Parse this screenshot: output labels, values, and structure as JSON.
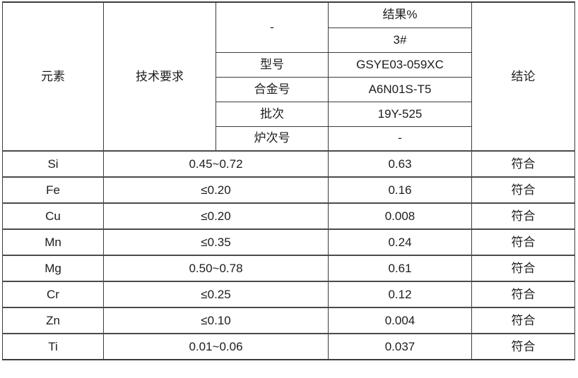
{
  "colors": {
    "background": "#ffffff",
    "border": "#3c3c3c",
    "text": "#1c1c1c"
  },
  "table": {
    "header": {
      "element_label": "元素",
      "requirement_label": "技术要求",
      "spec_dash": "-",
      "result_percent_label": "结果%",
      "sample_id": "3#",
      "meta": [
        {
          "label": "型号",
          "value": "GSYE03-059XC"
        },
        {
          "label": "合金号",
          "value": "A6N01S-T5"
        },
        {
          "label": "批次",
          "value": "19Y-525"
        },
        {
          "label": "炉次号",
          "value": "-"
        }
      ],
      "conclusion_label": "结论"
    },
    "rows": [
      {
        "element": "Si",
        "requirement": "0.45~0.72",
        "result": "0.63",
        "conclusion": "符合"
      },
      {
        "element": "Fe",
        "requirement": "≤0.20",
        "result": "0.16",
        "conclusion": "符合"
      },
      {
        "element": "Cu",
        "requirement": "≤0.20",
        "result": "0.008",
        "conclusion": "符合"
      },
      {
        "element": "Mn",
        "requirement": "≤0.35",
        "result": "0.24",
        "conclusion": "符合"
      },
      {
        "element": "Mg",
        "requirement": "0.50~0.78",
        "result": "0.61",
        "conclusion": "符合"
      },
      {
        "element": "Cr",
        "requirement": "≤0.25",
        "result": "0.12",
        "conclusion": "符合"
      },
      {
        "element": "Zn",
        "requirement": "≤0.10",
        "result": "0.004",
        "conclusion": "符合"
      },
      {
        "element": "Ti",
        "requirement": "0.01~0.06",
        "result": "0.037",
        "conclusion": "符合"
      }
    ]
  }
}
